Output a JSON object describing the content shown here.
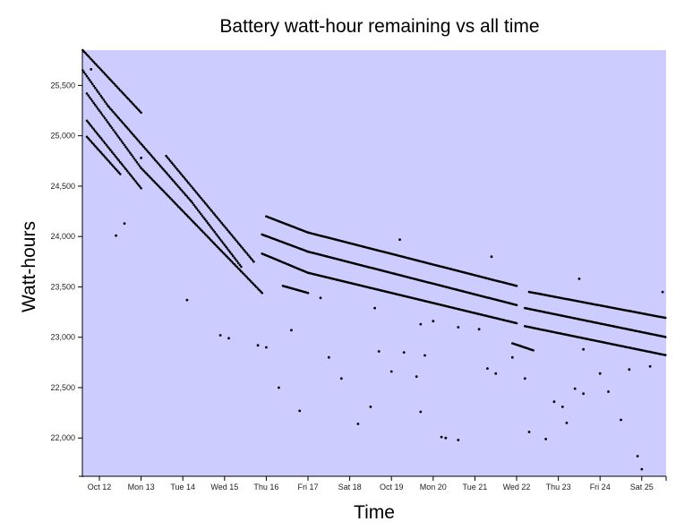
{
  "chart_data": {
    "type": "scatter",
    "title": "Battery watt-hour remaining vs all time",
    "xlabel": "Time",
    "ylabel": "Watt-hours",
    "ylim": [
      21620,
      25850
    ],
    "xlim_days_from_oct12": [
      -0.4,
      13.6
    ],
    "y_ticks": [
      {
        "value": 22000,
        "label": "22,000"
      },
      {
        "value": 22500,
        "label": "22,500"
      },
      {
        "value": 23000,
        "label": "23,000"
      },
      {
        "value": 23500,
        "label": "23,500"
      },
      {
        "value": 24000,
        "label": "24,000"
      },
      {
        "value": 24500,
        "label": "24,500"
      },
      {
        "value": 25000,
        "label": "25,000"
      },
      {
        "value": 25500,
        "label": "25,500"
      }
    ],
    "x_ticks": [
      {
        "day": 0,
        "label": "Oct 12"
      },
      {
        "day": 1,
        "label": "Mon 13"
      },
      {
        "day": 2,
        "label": "Tue 14"
      },
      {
        "day": 3,
        "label": "Wed 15"
      },
      {
        "day": 4,
        "label": "Thu 16"
      },
      {
        "day": 5,
        "label": "Fri 17"
      },
      {
        "day": 6,
        "label": "Sat 18"
      },
      {
        "day": 7,
        "label": "Oct 19"
      },
      {
        "day": 8,
        "label": "Mon 20"
      },
      {
        "day": 9,
        "label": "Tue 21"
      },
      {
        "day": 10,
        "label": "Wed 22"
      },
      {
        "day": 11,
        "label": "Thu 23"
      },
      {
        "day": 12,
        "label": "Fri 24"
      },
      {
        "day": 13,
        "label": "Sat 25"
      }
    ],
    "grid": false,
    "background_color": "#ccccff",
    "point_color": "#000000",
    "series": [
      {
        "name": "band-1",
        "segments": [
          {
            "x0": -0.4,
            "y0": 25850,
            "x1": 1.0,
            "y1": 25230
          },
          {
            "x0": 1.6,
            "y0": 24800,
            "x1": 3.7,
            "y1": 23750
          },
          {
            "x0": 4.0,
            "y0": 24200,
            "x1": 5.0,
            "y1": 24040
          },
          {
            "x0": 5.0,
            "y0": 24040,
            "x1": 10.0,
            "y1": 23510
          },
          {
            "x0": 10.3,
            "y0": 23450,
            "x1": 13.6,
            "y1": 23190
          }
        ]
      },
      {
        "name": "band-2",
        "segments": [
          {
            "x0": -0.4,
            "y0": 25650,
            "x1": 0.2,
            "y1": 25300
          },
          {
            "x0": 0.2,
            "y0": 25300,
            "x1": 2.2,
            "y1": 24350
          },
          {
            "x0": 2.2,
            "y0": 24350,
            "x1": 3.4,
            "y1": 23700
          },
          {
            "x0": 3.9,
            "y0": 24020,
            "x1": 5.0,
            "y1": 23850
          },
          {
            "x0": 5.0,
            "y0": 23850,
            "x1": 10.0,
            "y1": 23320
          },
          {
            "x0": 10.2,
            "y0": 23290,
            "x1": 13.6,
            "y1": 23000
          }
        ]
      },
      {
        "name": "band-3",
        "segments": [
          {
            "x0": -0.3,
            "y0": 25420,
            "x1": 1.0,
            "y1": 24680
          },
          {
            "x0": 1.0,
            "y0": 24680,
            "x1": 3.9,
            "y1": 23440
          },
          {
            "x0": 3.9,
            "y0": 23830,
            "x1": 5.0,
            "y1": 23640
          },
          {
            "x0": 5.0,
            "y0": 23640,
            "x1": 10.0,
            "y1": 23140
          },
          {
            "x0": 10.2,
            "y0": 23110,
            "x1": 13.6,
            "y1": 22820
          }
        ]
      },
      {
        "name": "band-4",
        "segments": [
          {
            "x0": -0.3,
            "y0": 25150,
            "x1": 1.0,
            "y1": 24480
          },
          {
            "x0": 4.4,
            "y0": 23510,
            "x1": 5.0,
            "y1": 23440
          },
          {
            "x0": 9.9,
            "y0": 22940,
            "x1": 10.4,
            "y1": 22870
          }
        ]
      },
      {
        "name": "band-5",
        "segments": [
          {
            "x0": -0.3,
            "y0": 24990,
            "x1": 0.5,
            "y1": 24620
          }
        ]
      }
    ],
    "scatter_points": [
      [
        0.8,
        25660
      ],
      [
        0.3,
        24520
      ],
      [
        0.0,
        24630
      ],
      [
        1.4,
        24010
      ],
      [
        1.6,
        24130
      ],
      [
        2.0,
        24780
      ],
      [
        3.1,
        23370
      ],
      [
        3.9,
        23020
      ],
      [
        4.1,
        22990
      ],
      [
        4.8,
        22920
      ],
      [
        5.0,
        22900
      ],
      [
        5.3,
        22500
      ],
      [
        5.6,
        23070
      ],
      [
        5.8,
        22270
      ],
      [
        6.3,
        23390
      ],
      [
        6.5,
        22800
      ],
      [
        6.8,
        22590
      ],
      [
        7.2,
        22140
      ],
      [
        7.5,
        22310
      ],
      [
        7.7,
        22860
      ],
      [
        7.6,
        23290
      ],
      [
        8.0,
        22660
      ],
      [
        8.3,
        22850
      ],
      [
        8.6,
        22610
      ],
      [
        8.7,
        22260
      ],
      [
        8.2,
        23970
      ],
      [
        8.8,
        22820
      ],
      [
        9.2,
        22010
      ],
      [
        9.3,
        22000
      ],
      [
        9.6,
        21980
      ],
      [
        9.0,
        23160
      ],
      [
        8.7,
        23130
      ],
      [
        9.6,
        23100
      ],
      [
        10.1,
        23080
      ],
      [
        10.4,
        23800
      ],
      [
        10.3,
        22690
      ],
      [
        10.5,
        22640
      ],
      [
        10.9,
        22800
      ],
      [
        11.2,
        22590
      ],
      [
        11.3,
        22060
      ],
      [
        11.9,
        22360
      ],
      [
        12.1,
        22310
      ],
      [
        11.7,
        21990
      ],
      [
        12.2,
        22150
      ],
      [
        12.4,
        22490
      ],
      [
        12.6,
        22440
      ],
      [
        12.5,
        23580
      ],
      [
        12.6,
        22880
      ],
      [
        13.0,
        22640
      ],
      [
        13.2,
        22460
      ],
      [
        13.5,
        22180
      ],
      [
        13.7,
        22680
      ],
      [
        13.9,
        21820
      ],
      [
        14.0,
        21690
      ],
      [
        14.2,
        22710
      ],
      [
        14.5,
        23450
      ],
      [
        14.6,
        22500
      ],
      [
        14.9,
        22420
      ],
      [
        15.0,
        22120
      ],
      [
        15.0,
        22780
      ],
      [
        14.7,
        22230
      ]
    ]
  }
}
